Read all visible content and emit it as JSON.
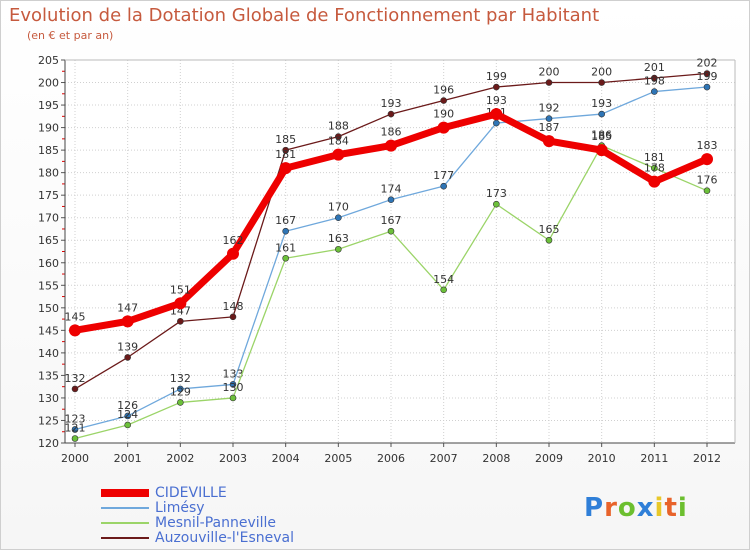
{
  "page": {
    "title": "Evolution de la Dotation Globale de Fonctionnement par Habitant",
    "subtitle": "(en € et par an)",
    "logo_text": "Proxiti",
    "logo_colors": [
      "#2f7fd8",
      "#e8632a",
      "#6cbf2f",
      "#2f7fd8",
      "#e8c82a",
      "#e8632a",
      "#6cbf2f"
    ]
  },
  "chart_data": {
    "type": "line",
    "title": "Evolution de la Dotation Globale de Fonctionnement par Habitant",
    "subtitle": "(en € et par an)",
    "xlabel": "",
    "ylabel": "",
    "x": [
      "2000",
      "2001",
      "2002",
      "2003",
      "2004",
      "2005",
      "2006",
      "2007",
      "2008",
      "2009",
      "2010",
      "2011",
      "2012"
    ],
    "ylim": [
      120,
      205
    ],
    "yticks": [
      120,
      125,
      130,
      135,
      140,
      145,
      150,
      155,
      160,
      165,
      170,
      175,
      180,
      185,
      190,
      195,
      200,
      205
    ],
    "grid": true,
    "legend_position": "bottom-left",
    "series": [
      {
        "name": "Auzouville-l'Esneval",
        "color": "#6b1a1a",
        "marker": "#6b1a1a",
        "width": 1.3,
        "values": [
          132,
          139,
          147,
          148,
          185,
          188,
          193,
          196,
          199,
          200,
          200,
          201,
          202
        ]
      },
      {
        "name": "Limésy",
        "color": "#6fa8dc",
        "marker": "#2e75b6",
        "width": 1.3,
        "values": [
          123,
          126,
          132,
          133,
          167,
          170,
          174,
          177,
          191,
          192,
          193,
          198,
          199
        ]
      },
      {
        "name": "Mesnil-Panneville",
        "color": "#9bd468",
        "marker": "#6cc03a",
        "width": 1.3,
        "values": [
          121,
          124,
          129,
          130,
          161,
          163,
          167,
          154,
          173,
          165,
          186,
          181,
          176
        ]
      },
      {
        "name": "CIDEVILLE",
        "color": "#ee0000",
        "marker": "#ee0000",
        "width": 7,
        "values": [
          145,
          147,
          151,
          162,
          181,
          184,
          186,
          190,
          193,
          187,
          185,
          178,
          183
        ]
      }
    ],
    "legend_order": [
      "CIDEVILLE",
      "Limésy",
      "Mesnil-Panneville",
      "Auzouville-l'Esneval"
    ]
  }
}
